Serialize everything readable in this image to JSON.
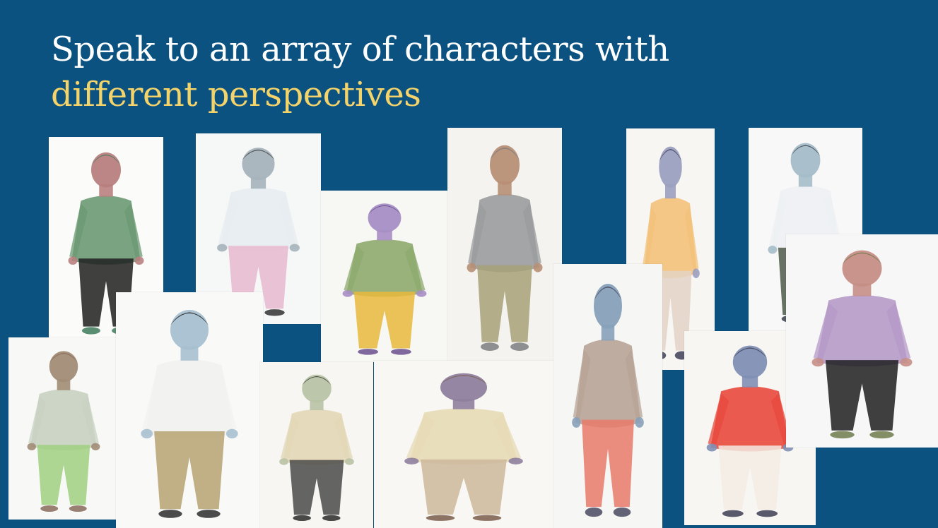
{
  "slide": {
    "title_line1": "Speak to an array of characters with",
    "title_line2": "different perspectives"
  },
  "colors": {
    "background": "#0b5280",
    "title_primary": "#ffffff",
    "title_accent": "#f3d36a",
    "card_paper": "#fbfbf9"
  },
  "illustrations": [
    {
      "name": "woman-green-headscarf",
      "paper": "#fbfbf9",
      "skin": "#b98080",
      "top": "#6c9a73",
      "bottom": "#1f1f1f",
      "accent": "#3d7a5a"
    },
    {
      "name": "doctor-with-stethoscope",
      "paper": "#f6f7f7",
      "skin": "#a6b3ba",
      "top": "#e7ecef",
      "bottom": "#e8b8cf",
      "accent": "#333333"
    },
    {
      "name": "man-green-jacket-smoking",
      "paper": "#f7f7f4",
      "skin": "#a78ec5",
      "top": "#8eaa6e",
      "bottom": "#e9b93b",
      "accent": "#6a4f8b"
    },
    {
      "name": "young-man-grey-hoodie",
      "paper": "#f4f3ef",
      "skin": "#b88f76",
      "top": "#9b9c9e",
      "bottom": "#a7a078",
      "accent": "#7b7c80"
    },
    {
      "name": "man-orange-scrubs",
      "paper": "#f7f6f3",
      "skin": "#9ba0c0",
      "top": "#f3c27b",
      "bottom": "#e3d2c4",
      "accent": "#3e3e56"
    },
    {
      "name": "mother-and-child",
      "paper": "#f8f8f8",
      "skin": "#a4bcc8",
      "top": "#eef0f3",
      "bottom": "#4e5a4a",
      "accent": "#3b3f4a"
    },
    {
      "name": "farmer-in-rice-field",
      "paper": "#f8f9f6",
      "skin": "#a18c76",
      "top": "#c8d2c1",
      "bottom": "#9fd07f",
      "accent": "#8a6b5c"
    },
    {
      "name": "two-young-people",
      "paper": "#f9f9f8",
      "skin": "#a7c0d0",
      "top": "#f1f1ef",
      "bottom": "#b7a372",
      "accent": "#2d2d2d"
    },
    {
      "name": "woman-office-chair",
      "paper": "#f7f6f2",
      "skin": "#b8c3a5",
      "top": "#e2d7b5",
      "bottom": "#4a4a4a",
      "accent": "#2a2a2a"
    },
    {
      "name": "old-man-reading-newspaper",
      "paper": "#f8f7f3",
      "skin": "#8f7f9e",
      "top": "#e7dab6",
      "bottom": "#cdb79a",
      "accent": "#7a5c4a"
    },
    {
      "name": "woman-red-wrap-skirt",
      "paper": "#f6f6f4",
      "skin": "#87a1ba",
      "top": "#b8a497",
      "bottom": "#e87a6a",
      "accent": "#48495f"
    },
    {
      "name": "woman-striped-shawl",
      "paper": "#f8f6f3",
      "skin": "#7f8fb4",
      "top": "#e8493d",
      "bottom": "#f3ece3",
      "accent": "#3d3d53"
    },
    {
      "name": "woman-with-cart",
      "paper": "#f7f7f7",
      "skin": "#c58e86",
      "top": "#b59ac8",
      "bottom": "#1f1f1f",
      "accent": "#6e7b4c"
    }
  ]
}
